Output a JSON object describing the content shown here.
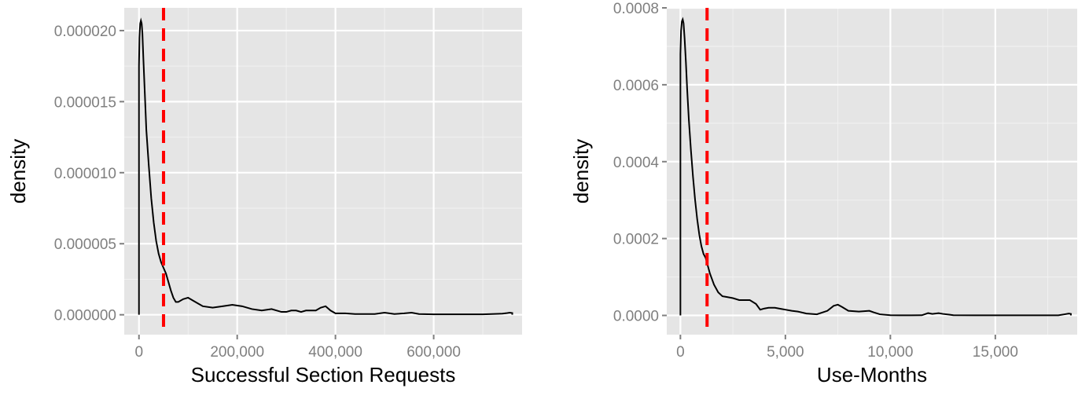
{
  "chart_data": [
    {
      "type": "line",
      "xlabel": "Successful Section Requests",
      "ylabel": "density",
      "xlim": [
        -30000,
        780000
      ],
      "ylim": [
        -1.4e-06,
        2.16e-05
      ],
      "x_ticks": [
        0,
        200000,
        400000,
        600000
      ],
      "x_tick_labels": [
        "0",
        "200,000",
        "400,000",
        "600,000"
      ],
      "y_ticks": [
        0,
        5e-06,
        1e-05,
        1.5e-05,
        2e-05
      ],
      "y_tick_labels": [
        "0.000000",
        "0.000005",
        "0.000010",
        "0.000015",
        "0.000020"
      ],
      "grid": true,
      "vline": {
        "x": 50000,
        "color": "#ff0000",
        "style": "dashed"
      },
      "series": [
        {
          "color": "#000000",
          "x": [
            0,
            0,
            1000,
            2500,
            4000,
            5500,
            7000,
            9000,
            12000,
            15000,
            20000,
            25000,
            30000,
            35000,
            40000,
            45000,
            50000,
            55000,
            60000,
            65000,
            70000,
            75000,
            80000,
            90000,
            100000,
            110000,
            120000,
            130000,
            150000,
            170000,
            190000,
            210000,
            230000,
            250000,
            270000,
            290000,
            300000,
            310000,
            320000,
            330000,
            340000,
            350000,
            360000,
            370000,
            380000,
            390000,
            400000,
            420000,
            440000,
            460000,
            480000,
            500000,
            510000,
            520000,
            540000,
            555000,
            570000,
            600000,
            650000,
            700000,
            740000,
            750000,
            755000,
            760000,
            760000
          ],
          "y": [
            0,
            1.75e-05,
            1.95e-05,
            2.05e-05,
            2.07e-05,
            2.05e-05,
            1.98e-05,
            1.8e-05,
            1.55e-05,
            1.3e-05,
            1.05e-05,
            8.2e-06,
            6.5e-06,
            5.2e-06,
            4.3e-06,
            3.7e-06,
            3.3e-06,
            2.9e-06,
            2.3e-06,
            1.7e-06,
            1.2e-06,
            9e-07,
            9e-07,
            1.1e-06,
            1.2e-06,
            1e-06,
            8e-07,
            6e-07,
            5e-07,
            6e-07,
            7e-07,
            6e-07,
            4e-07,
            3e-07,
            4e-07,
            2e-07,
            2e-07,
            3e-07,
            3e-07,
            2e-07,
            3e-07,
            3e-07,
            3e-07,
            5e-07,
            6e-07,
            3e-07,
            1e-07,
            1e-07,
            5e-08,
            5e-08,
            5e-08,
            1.5e-07,
            1e-07,
            5e-08,
            1e-07,
            1.5e-07,
            5e-08,
            3e-08,
            3e-08,
            3e-08,
            8e-08,
            1.2e-07,
            1.5e-07,
            1.2e-07,
            0
          ]
        }
      ]
    },
    {
      "type": "line",
      "xlabel": "Use-Months",
      "ylabel": "density",
      "xlim": [
        -650,
        18900
      ],
      "ylim": [
        -5e-05,
        0.0008
      ],
      "x_ticks": [
        0,
        5000,
        10000,
        15000
      ],
      "x_tick_labels": [
        "0",
        "5,000",
        "10,000",
        "15,000"
      ],
      "y_ticks": [
        0,
        0.0002,
        0.0004,
        0.0006,
        0.0008
      ],
      "y_tick_labels": [
        "0.0000",
        "0.0002",
        "0.0004",
        "0.0006",
        "0.0008"
      ],
      "grid": true,
      "vline": {
        "x": 1270,
        "color": "#ff0000",
        "style": "dashed"
      },
      "series": [
        {
          "color": "#000000",
          "x": [
            0,
            0,
            30,
            70,
            110,
            150,
            200,
            260,
            320,
            400,
            500,
            600,
            700,
            800,
            900,
            1000,
            1100,
            1200,
            1300,
            1400,
            1500,
            1600,
            1800,
            2000,
            2200,
            2500,
            2800,
            3000,
            3300,
            3600,
            3800,
            4000,
            4200,
            4500,
            4800,
            5000,
            5300,
            5600,
            6000,
            6500,
            7000,
            7300,
            7500,
            7700,
            8000,
            8500,
            9000,
            9200,
            9500,
            10000,
            10500,
            11000,
            11500,
            11800,
            12000,
            12300,
            12500,
            12800,
            13000,
            14000,
            16000,
            18000,
            18300,
            18500,
            18600,
            18600
          ],
          "y": [
            0,
            0.00068,
            0.00074,
            0.000765,
            0.00077,
            0.00076,
            0.00072,
            0.00066,
            0.00059,
            0.00051,
            0.00043,
            0.00036,
            0.0003,
            0.00025,
            0.00021,
            0.00018,
            0.00016,
            0.00015,
            0.00013,
            0.00011,
            9.5e-05,
            8e-05,
            6e-05,
            5e-05,
            4.8e-05,
            4.5e-05,
            4e-05,
            4e-05,
            4e-05,
            3e-05,
            1.5e-05,
            1.8e-05,
            2e-05,
            2e-05,
            1.7e-05,
            1.5e-05,
            1.2e-05,
            1e-05,
            5e-06,
            3e-06,
            1.2e-05,
            2.5e-05,
            2.8e-05,
            2.2e-05,
            1.2e-05,
            1e-05,
            1.2e-05,
            8e-06,
            3e-06,
            5e-07,
            3e-07,
            3e-07,
            5e-07,
            6e-06,
            4e-06,
            6e-06,
            4e-06,
            2e-06,
            5e-07,
            3e-07,
            3e-07,
            3e-07,
            3e-06,
            5e-06,
            4e-06,
            0
          ]
        }
      ]
    }
  ]
}
